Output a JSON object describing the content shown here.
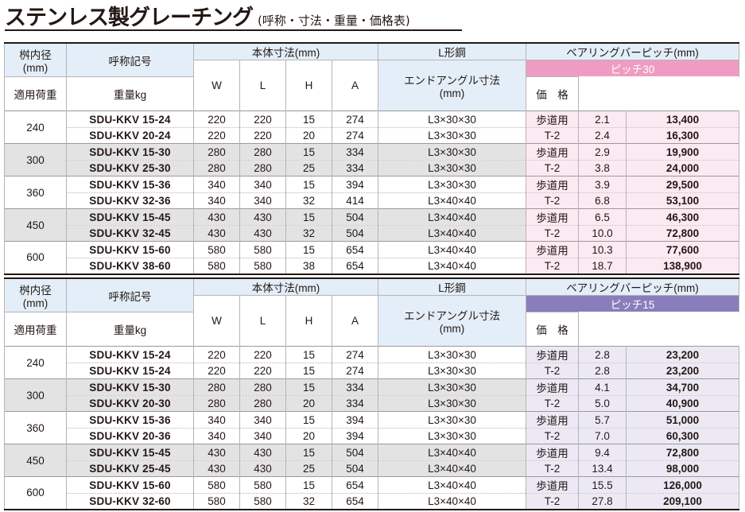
{
  "title": {
    "main": "ステンレス製グレーチング",
    "sub": "(呼称・寸法・重量・価格表)"
  },
  "headers": {
    "pit": "桝内径\n(mm)",
    "code": "呼称記号",
    "body_dims": "本体寸法(mm)",
    "w": "W",
    "l": "L",
    "h": "H",
    "a": "A",
    "angle": "L形鋼",
    "angle_sub": "エンドアングル寸法\n(mm)",
    "bearing": "ベアリングバーピッチ(mm)",
    "load": "適用荷重",
    "weight": "重量kg",
    "price": "価　格"
  },
  "tables": [
    {
      "pitch_label": "ピッチ30",
      "accent": "#ef9cc3",
      "groups": [
        {
          "pit": "240",
          "rows": [
            {
              "code": "SDU-KKV 15-24",
              "w": "220",
              "l": "220",
              "h": "15",
              "a": "274",
              "angle": "L3×30×30",
              "load": "歩道用",
              "weight": "2.1",
              "price": "13,400"
            },
            {
              "code": "SDU-KKV 20-24",
              "w": "220",
              "l": "220",
              "h": "20",
              "a": "274",
              "angle": "L3×30×30",
              "load": "T-2",
              "weight": "2.4",
              "price": "16,300"
            }
          ]
        },
        {
          "pit": "300",
          "rows": [
            {
              "code": "SDU-KKV 15-30",
              "w": "280",
              "l": "280",
              "h": "15",
              "a": "334",
              "angle": "L3×30×30",
              "load": "歩道用",
              "weight": "2.9",
              "price": "19,900"
            },
            {
              "code": "SDU-KKV 25-30",
              "w": "280",
              "l": "280",
              "h": "25",
              "a": "334",
              "angle": "L3×30×30",
              "load": "T-2",
              "weight": "3.8",
              "price": "24,000"
            }
          ]
        },
        {
          "pit": "360",
          "rows": [
            {
              "code": "SDU-KKV 15-36",
              "w": "340",
              "l": "340",
              "h": "15",
              "a": "394",
              "angle": "L3×30×30",
              "load": "歩道用",
              "weight": "3.9",
              "price": "29,500"
            },
            {
              "code": "SDU-KKV 32-36",
              "w": "340",
              "l": "340",
              "h": "32",
              "a": "414",
              "angle": "L3×40×40",
              "load": "T-2",
              "weight": "6.8",
              "price": "53,100"
            }
          ]
        },
        {
          "pit": "450",
          "rows": [
            {
              "code": "SDU-KKV 15-45",
              "w": "430",
              "l": "430",
              "h": "15",
              "a": "504",
              "angle": "L3×40×40",
              "load": "歩道用",
              "weight": "6.5",
              "price": "46,300"
            },
            {
              "code": "SDU-KKV 32-45",
              "w": "430",
              "l": "430",
              "h": "32",
              "a": "504",
              "angle": "L3×40×40",
              "load": "T-2",
              "weight": "10.0",
              "price": "72,800"
            }
          ]
        },
        {
          "pit": "600",
          "rows": [
            {
              "code": "SDU-KKV 15-60",
              "w": "580",
              "l": "580",
              "h": "15",
              "a": "654",
              "angle": "L3×40×40",
              "load": "歩道用",
              "weight": "10.3",
              "price": "77,600"
            },
            {
              "code": "SDU-KKV 38-60",
              "w": "580",
              "l": "580",
              "h": "38",
              "a": "654",
              "angle": "L3×40×40",
              "load": "T-2",
              "weight": "18.7",
              "price": "138,900"
            }
          ]
        }
      ]
    },
    {
      "pitch_label": "ピッチ15",
      "accent": "#8a7dbb",
      "groups": [
        {
          "pit": "240",
          "rows": [
            {
              "code": "SDU-KKV 15-24",
              "w": "220",
              "l": "220",
              "h": "15",
              "a": "274",
              "angle": "L3×30×30",
              "load": "歩道用",
              "weight": "2.8",
              "price": "23,200"
            },
            {
              "code": "SDU-KKV 15-24",
              "w": "220",
              "l": "220",
              "h": "15",
              "a": "274",
              "angle": "L3×30×30",
              "load": "T-2",
              "weight": "2.8",
              "price": "23,200"
            }
          ]
        },
        {
          "pit": "300",
          "rows": [
            {
              "code": "SDU-KKV 15-30",
              "w": "280",
              "l": "280",
              "h": "15",
              "a": "334",
              "angle": "L3×30×30",
              "load": "歩道用",
              "weight": "4.1",
              "price": "34,700"
            },
            {
              "code": "SDU-KKV 20-30",
              "w": "280",
              "l": "280",
              "h": "20",
              "a": "334",
              "angle": "L3×30×30",
              "load": "T-2",
              "weight": "5.0",
              "price": "40,900"
            }
          ]
        },
        {
          "pit": "360",
          "rows": [
            {
              "code": "SDU-KKV 15-36",
              "w": "340",
              "l": "340",
              "h": "15",
              "a": "394",
              "angle": "L3×30×30",
              "load": "歩道用",
              "weight": "5.7",
              "price": "51,000"
            },
            {
              "code": "SDU-KKV 20-36",
              "w": "340",
              "l": "340",
              "h": "20",
              "a": "394",
              "angle": "L3×30×30",
              "load": "T-2",
              "weight": "7.0",
              "price": "60,300"
            }
          ]
        },
        {
          "pit": "450",
          "rows": [
            {
              "code": "SDU-KKV 15-45",
              "w": "430",
              "l": "430",
              "h": "15",
              "a": "504",
              "angle": "L3×40×40",
              "load": "歩道用",
              "weight": "9.4",
              "price": "72,800"
            },
            {
              "code": "SDU-KKV 25-45",
              "w": "430",
              "l": "430",
              "h": "25",
              "a": "504",
              "angle": "L3×40×40",
              "load": "T-2",
              "weight": "13.4",
              "price": "98,000"
            }
          ]
        },
        {
          "pit": "600",
          "rows": [
            {
              "code": "SDU-KKV 15-60",
              "w": "580",
              "l": "580",
              "h": "15",
              "a": "654",
              "angle": "L3×40×40",
              "load": "歩道用",
              "weight": "15.5",
              "price": "126,000"
            },
            {
              "code": "SDU-KKV 32-60",
              "w": "580",
              "l": "580",
              "h": "32",
              "a": "654",
              "angle": "L3×40×40",
              "load": "T-2",
              "weight": "27.8",
              "price": "209,100"
            }
          ]
        }
      ]
    }
  ]
}
